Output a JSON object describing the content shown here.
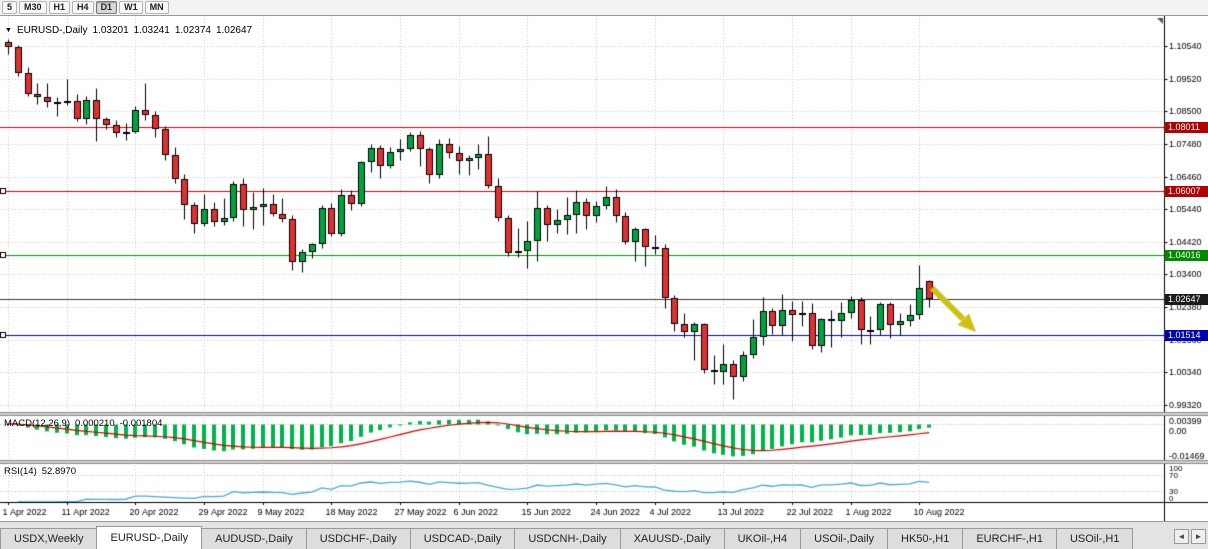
{
  "toolbar": {
    "periods": [
      {
        "label": "5",
        "active": false
      },
      {
        "label": "M30",
        "active": false
      },
      {
        "label": "H1",
        "active": false
      },
      {
        "label": "H4",
        "active": false
      },
      {
        "label": "D1",
        "active": true
      },
      {
        "label": "W1",
        "active": false
      },
      {
        "label": "MN",
        "active": false
      }
    ]
  },
  "header": {
    "dropdown_icon": "▼",
    "symbol": "EURUSD-,Daily",
    "open": "1.03201",
    "high": "1.03241",
    "low": "1.02374",
    "close": "1.02647"
  },
  "macd_panel": {
    "name": "MACD(12,26,9)",
    "main_value": "0.000210",
    "signal_value": "-0.001804",
    "axis_labels": [
      "0.00399",
      "0.00",
      "-0.01469"
    ],
    "histogram_color": "#00b44a",
    "signal_color": "#d60000"
  },
  "rsi_panel": {
    "name": "RSI(14)",
    "value": "52.8970",
    "axis_labels": [
      "100",
      "70",
      "30",
      "0"
    ],
    "levels": [
      70,
      30
    ],
    "line_color": "#4aa8d8"
  },
  "annotation": {
    "type": "arrow-down-right",
    "color": "#cdc113"
  },
  "tabs": {
    "scroll_left_icon": "◄",
    "scroll_right_icon": "►",
    "items": [
      {
        "label": "USDX,Weekly",
        "active": false
      },
      {
        "label": "EURUSD-,Daily",
        "active": true
      },
      {
        "label": "AUDUSD-,Daily",
        "active": false
      },
      {
        "label": "USDCHF-,Daily",
        "active": false
      },
      {
        "label": "USDCAD-,Daily",
        "active": false
      },
      {
        "label": "USDCNH-,Daily",
        "active": false
      },
      {
        "label": "XAUUSD-,Daily",
        "active": false
      },
      {
        "label": "UKOil-,H4",
        "active": false
      },
      {
        "label": "USOil-,Daily",
        "active": false
      },
      {
        "label": "HK50-,H1",
        "active": false
      },
      {
        "label": "EURCHF-,H1",
        "active": false
      },
      {
        "label": "USOil-,H1",
        "active": false
      }
    ]
  },
  "chart_data": {
    "type": "candlestick",
    "symbol": "EURUSD-",
    "timeframe": "Daily",
    "title": "EURUSD-,Daily",
    "ohlc_current": {
      "open": 1.03201,
      "high": 1.03241,
      "low": 1.02374,
      "close": 1.02647
    },
    "ylim": [
      0.991,
      1.1148
    ],
    "grid": true,
    "up_color": "#00a33e",
    "down_color": "#e03030",
    "outline_color": "#000000",
    "y_ticks": [
      "1.10540",
      "1.09520",
      "1.08500",
      "1.07480",
      "1.06460",
      "1.05440",
      "1.04420",
      "1.03400",
      "1.02380",
      "1.01360",
      "1.00340",
      "0.99320"
    ],
    "x_ticks": [
      {
        "text": "1 Apr 2022",
        "bar": 0
      },
      {
        "text": "11 Apr 2022",
        "bar": 6
      },
      {
        "text": "20 Apr 2022",
        "bar": 13
      },
      {
        "text": "29 Apr 2022",
        "bar": 20
      },
      {
        "text": "9 May 2022",
        "bar": 26
      },
      {
        "text": "18 May 2022",
        "bar": 33
      },
      {
        "text": "27 May 2022",
        "bar": 40
      },
      {
        "text": "6 Jun 2022",
        "bar": 46
      },
      {
        "text": "15 Jun 2022",
        "bar": 53
      },
      {
        "text": "24 Jun 2022",
        "bar": 60
      },
      {
        "text": "4 Jul 2022",
        "bar": 66
      },
      {
        "text": "13 Jul 2022",
        "bar": 73
      },
      {
        "text": "22 Jul 2022",
        "bar": 80
      },
      {
        "text": "1 Aug 2022",
        "bar": 86
      },
      {
        "text": "10 Aug 2022",
        "bar": 93
      }
    ],
    "levels": [
      {
        "label": "1.08011",
        "value": 1.08011,
        "line_color": "#d40000",
        "badge_color": "#b40000",
        "handle": false
      },
      {
        "label": "1.06007",
        "value": 1.06007,
        "line_color": "#d40000",
        "badge_color": "#b40000",
        "handle": true
      },
      {
        "label": "1.04016",
        "value": 1.04016,
        "line_color": "#009a00",
        "badge_color": "#008a00",
        "handle": true
      },
      {
        "label": "1.02647",
        "value": 1.02647,
        "line_color": "#3a3a3a",
        "badge_color": "#1c1c1c",
        "handle": false
      },
      {
        "label": "1.01514",
        "value": 1.01514,
        "line_color": "#0000cc",
        "badge_color": "#0000b4",
        "handle": true
      }
    ],
    "candles": [
      [
        1.1067,
        1.1076,
        1.1028,
        1.1052
      ],
      [
        1.1052,
        1.1056,
        1.096,
        1.097
      ],
      [
        1.097,
        1.099,
        1.0898,
        1.0905
      ],
      [
        1.0905,
        1.0938,
        1.0874,
        1.0895
      ],
      [
        1.0895,
        1.094,
        1.0864,
        1.0878
      ],
      [
        1.0878,
        1.0895,
        1.0836,
        1.0876
      ],
      [
        1.0876,
        1.095,
        1.087,
        1.0883
      ],
      [
        1.0883,
        1.0904,
        1.0821,
        1.0827
      ],
      [
        1.0827,
        1.0897,
        1.0809,
        1.0886
      ],
      [
        1.0886,
        1.0923,
        1.0757,
        1.0827
      ],
      [
        1.0827,
        1.0832,
        1.0796,
        1.0807
      ],
      [
        1.0807,
        1.0822,
        1.0769,
        1.0781
      ],
      [
        1.0781,
        1.0815,
        1.0761,
        1.0786
      ],
      [
        1.0786,
        1.0867,
        1.0783,
        1.0853
      ],
      [
        1.0853,
        1.0937,
        1.0824,
        1.0838
      ],
      [
        1.0838,
        1.0852,
        1.077,
        1.0795
      ],
      [
        1.0795,
        1.0804,
        1.0697,
        1.0712
      ],
      [
        1.0712,
        1.0738,
        1.0625,
        1.0637
      ],
      [
        1.0637,
        1.0655,
        1.0514,
        1.0556
      ],
      [
        1.0556,
        1.0567,
        1.0471,
        1.0498
      ],
      [
        1.0498,
        1.0593,
        1.0492,
        1.0545
      ],
      [
        1.0545,
        1.0568,
        1.049,
        1.0505
      ],
      [
        1.0505,
        1.0578,
        1.0495,
        1.0518
      ],
      [
        1.0518,
        1.0632,
        1.0507,
        1.0622
      ],
      [
        1.0622,
        1.0642,
        1.0492,
        1.054
      ],
      [
        1.054,
        1.0599,
        1.0483,
        1.0551
      ],
      [
        1.0551,
        1.0609,
        1.0495,
        1.056
      ],
      [
        1.056,
        1.0592,
        1.0524,
        1.0529
      ],
      [
        1.0529,
        1.0579,
        1.0503,
        1.0514
      ],
      [
        1.0514,
        1.0525,
        1.0354,
        1.0379
      ],
      [
        1.0379,
        1.042,
        1.0348,
        1.0411
      ],
      [
        1.0411,
        1.0437,
        1.0392,
        1.0434
      ],
      [
        1.0434,
        1.0556,
        1.0424,
        1.0549
      ],
      [
        1.0549,
        1.0564,
        1.0459,
        1.0465
      ],
      [
        1.0465,
        1.0608,
        1.046,
        1.0588
      ],
      [
        1.0588,
        1.0603,
        1.0543,
        1.0561
      ],
      [
        1.0561,
        1.0695,
        1.0555,
        1.0691
      ],
      [
        1.0691,
        1.0748,
        1.066,
        1.0735
      ],
      [
        1.0735,
        1.0745,
        1.0641,
        1.068
      ],
      [
        1.068,
        1.074,
        1.0674,
        1.0724
      ],
      [
        1.0724,
        1.0764,
        1.0697,
        1.0733
      ],
      [
        1.0733,
        1.0786,
        1.0727,
        1.0777
      ],
      [
        1.0777,
        1.0787,
        1.0678,
        1.0733
      ],
      [
        1.0733,
        1.0739,
        1.0627,
        1.065
      ],
      [
        1.065,
        1.0764,
        1.0641,
        1.0748
      ],
      [
        1.0748,
        1.0766,
        1.0705,
        1.0719
      ],
      [
        1.0719,
        1.0741,
        1.0653,
        1.0695
      ],
      [
        1.0695,
        1.0713,
        1.0652,
        1.0703
      ],
      [
        1.0703,
        1.0749,
        1.067,
        1.0716
      ],
      [
        1.0716,
        1.0774,
        1.0611,
        1.0617
      ],
      [
        1.0617,
        1.0643,
        1.0506,
        1.0518
      ],
      [
        1.0518,
        1.0527,
        1.0399,
        1.0408
      ],
      [
        1.0408,
        1.0485,
        1.0396,
        1.0414
      ],
      [
        1.0414,
        1.0507,
        1.0359,
        1.0444
      ],
      [
        1.0444,
        1.0601,
        1.0381,
        1.0548
      ],
      [
        1.0548,
        1.0557,
        1.0444,
        1.0495
      ],
      [
        1.0495,
        1.0546,
        1.0469,
        1.0511
      ],
      [
        1.0511,
        1.0582,
        1.0468,
        1.0527
      ],
      [
        1.0527,
        1.0605,
        1.0469,
        1.0566
      ],
      [
        1.0566,
        1.058,
        1.0483,
        1.0523
      ],
      [
        1.0523,
        1.0571,
        1.0503,
        1.0553
      ],
      [
        1.0553,
        1.0615,
        1.0546,
        1.0583
      ],
      [
        1.0583,
        1.0606,
        1.0503,
        1.0523
      ],
      [
        1.0523,
        1.0536,
        1.0434,
        1.0442
      ],
      [
        1.0442,
        1.0488,
        1.0381,
        1.0482
      ],
      [
        1.0482,
        1.0486,
        1.0365,
        1.0426
      ],
      [
        1.0426,
        1.0463,
        1.0405,
        1.0422
      ],
      [
        1.0422,
        1.0435,
        1.0235,
        1.0265
      ],
      [
        1.0265,
        1.0275,
        1.0162,
        1.0184
      ],
      [
        1.0184,
        1.0221,
        1.0144,
        1.0161
      ],
      [
        1.0161,
        1.0192,
        1.0072,
        1.0186
      ],
      [
        1.0186,
        1.0187,
        1.0032,
        1.004
      ],
      [
        1.004,
        1.0088,
        0.9999,
        1.0036
      ],
      [
        1.0036,
        1.0122,
        0.9998,
        1.006
      ],
      [
        1.006,
        1.0072,
        0.9952,
        1.0018
      ],
      [
        1.0018,
        1.0101,
        1.0006,
        1.0089
      ],
      [
        1.0089,
        1.0201,
        1.008,
        1.0143
      ],
      [
        1.0143,
        1.0269,
        1.0121,
        1.0227
      ],
      [
        1.0227,
        1.0235,
        1.0155,
        1.018
      ],
      [
        1.018,
        1.0278,
        1.0152,
        1.0229
      ],
      [
        1.0229,
        1.0256,
        1.0131,
        1.0213
      ],
      [
        1.0213,
        1.0258,
        1.018,
        1.022
      ],
      [
        1.022,
        1.025,
        1.0108,
        1.0115
      ],
      [
        1.0115,
        1.0205,
        1.0097,
        1.0201
      ],
      [
        1.0201,
        1.0228,
        1.0113,
        1.0196
      ],
      [
        1.0196,
        1.0254,
        1.0144,
        1.0221
      ],
      [
        1.0221,
        1.0274,
        1.0205,
        1.0261
      ],
      [
        1.0261,
        1.0268,
        1.0123,
        1.0165
      ],
      [
        1.0165,
        1.0209,
        1.0122,
        1.0166
      ],
      [
        1.0166,
        1.0254,
        1.0152,
        1.0247
      ],
      [
        1.0247,
        1.0253,
        1.0141,
        1.0181
      ],
      [
        1.0181,
        1.0221,
        1.0151,
        1.0194
      ],
      [
        1.0194,
        1.0249,
        1.0178,
        1.0212
      ],
      [
        1.0212,
        1.0369,
        1.0202,
        1.0299
      ],
      [
        1.03201,
        1.03241,
        1.02374,
        1.02647
      ]
    ]
  }
}
